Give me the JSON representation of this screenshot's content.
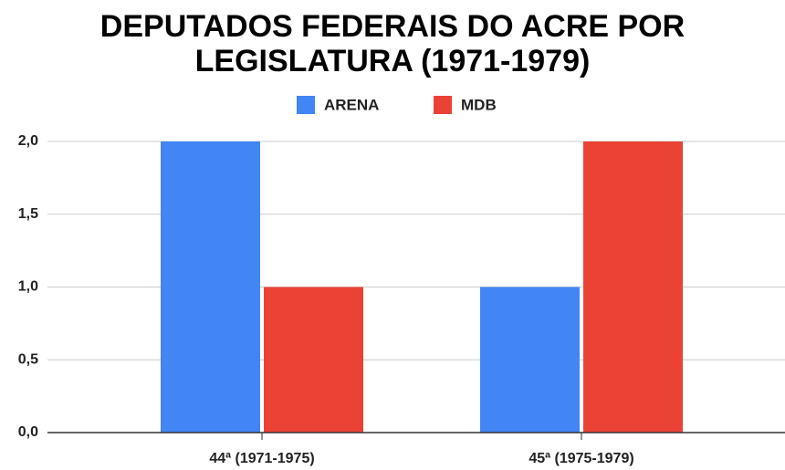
{
  "chart_data": {
    "type": "bar",
    "title": "DEPUTADOS FEDERAIS DO ACRE POR LEGISLATURA (1971-1979)",
    "categories": [
      "44ª (1971-1975)",
      "45ª (1975-1979)"
    ],
    "series": [
      {
        "name": "ARENA",
        "color": "#4285f4",
        "values": [
          2,
          1
        ]
      },
      {
        "name": "MDB",
        "color": "#ea4335",
        "values": [
          1,
          2
        ]
      }
    ],
    "ylim": [
      0,
      2
    ],
    "yticks": [
      {
        "value": 0,
        "label": "0,0"
      },
      {
        "value": 0.5,
        "label": "0,5"
      },
      {
        "value": 1,
        "label": "1,0"
      },
      {
        "value": 1.5,
        "label": "1,5"
      },
      {
        "value": 2,
        "label": "2,0"
      }
    ],
    "grid": true,
    "legend": "top"
  }
}
